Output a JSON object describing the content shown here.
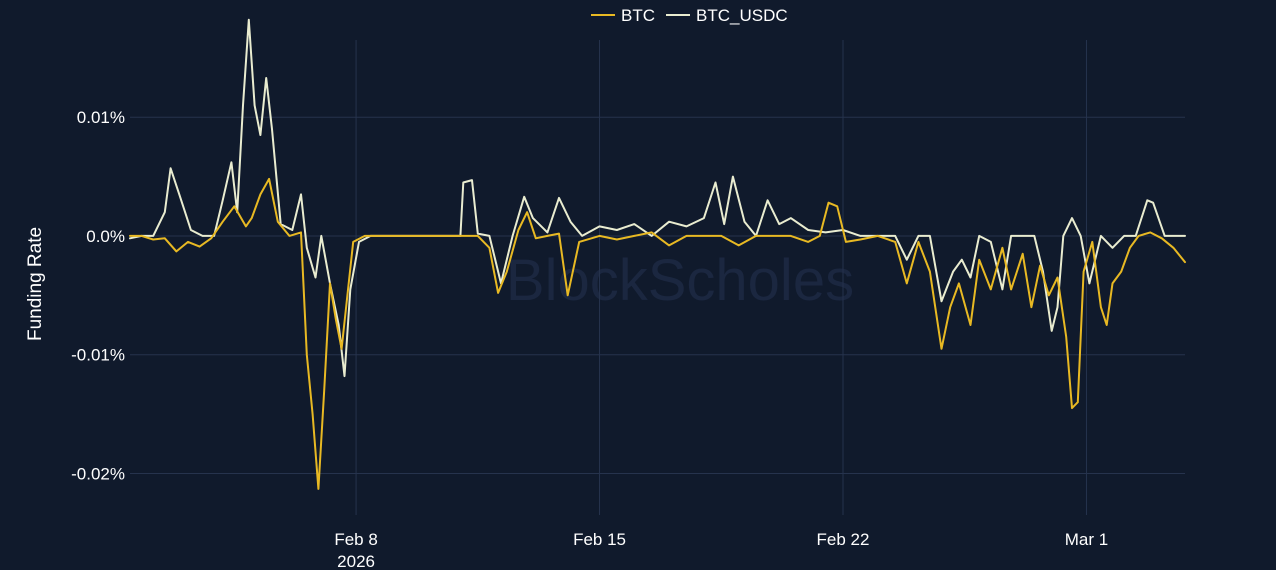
{
  "watermark": "BlockScholes",
  "chart_data": {
    "type": "line",
    "title": "",
    "xlabel": "",
    "ylabel": "Funding Rate",
    "ylim": [
      -0.0235,
      0.0165
    ],
    "xlim": [
      "2026-02-01T12:00",
      "2026-03-03T20:00"
    ],
    "y_ticks": [
      {
        "value": 0.01,
        "label": "0.01%"
      },
      {
        "value": 0.0,
        "label": "0.0%"
      },
      {
        "value": -0.01,
        "label": "-0.01%"
      },
      {
        "value": -0.02,
        "label": "-0.02%"
      }
    ],
    "x_ticks": [
      {
        "date": "2026-02-08",
        "label": "Feb 8",
        "sublabel": "2026"
      },
      {
        "date": "2026-02-15",
        "label": "Feb 15",
        "sublabel": ""
      },
      {
        "date": "2026-02-22",
        "label": "Feb 22",
        "sublabel": ""
      },
      {
        "date": "2026-03-01",
        "label": "Mar 1",
        "sublabel": ""
      }
    ],
    "grid": true,
    "legend_position": "top-center",
    "series": [
      {
        "name": "BTC",
        "color": "#e8b923",
        "points": [
          [
            "2026-02-01T12:00",
            0.0
          ],
          [
            "2026-02-01T20:00",
            0.0
          ],
          [
            "2026-02-02T04:00",
            -0.0003
          ],
          [
            "2026-02-02T12:00",
            -0.0002
          ],
          [
            "2026-02-02T20:00",
            -0.0013
          ],
          [
            "2026-02-03T04:00",
            -0.0005
          ],
          [
            "2026-02-03T12:00",
            -0.0009
          ],
          [
            "2026-02-03T20:00",
            -0.0002
          ],
          [
            "2026-02-04T04:00",
            0.0012
          ],
          [
            "2026-02-04T12:00",
            0.0025
          ],
          [
            "2026-02-04T20:00",
            0.0008
          ],
          [
            "2026-02-05T00:00",
            0.0015
          ],
          [
            "2026-02-05T06:00",
            0.0035
          ],
          [
            "2026-02-05T12:00",
            0.0048
          ],
          [
            "2026-02-05T18:00",
            0.0012
          ],
          [
            "2026-02-06T02:00",
            0.0
          ],
          [
            "2026-02-06T10:00",
            0.0003
          ],
          [
            "2026-02-06T14:00",
            -0.01
          ],
          [
            "2026-02-06T18:00",
            -0.015
          ],
          [
            "2026-02-06T22:00",
            -0.0213
          ],
          [
            "2026-02-07T02:00",
            -0.013
          ],
          [
            "2026-02-07T06:00",
            -0.004
          ],
          [
            "2026-02-07T10:00",
            -0.007
          ],
          [
            "2026-02-07T14:00",
            -0.0095
          ],
          [
            "2026-02-07T18:00",
            -0.005
          ],
          [
            "2026-02-07T22:00",
            -0.0005
          ],
          [
            "2026-02-08T06:00",
            0.0
          ],
          [
            "2026-02-09T00:00",
            0.0
          ],
          [
            "2026-02-10T00:00",
            0.0
          ],
          [
            "2026-02-11T00:00",
            0.0
          ],
          [
            "2026-02-11T12:00",
            0.0
          ],
          [
            "2026-02-11T20:00",
            -0.001
          ],
          [
            "2026-02-12T02:00",
            -0.0048
          ],
          [
            "2026-02-12T08:00",
            -0.003
          ],
          [
            "2026-02-12T16:00",
            0.0005
          ],
          [
            "2026-02-12T22:00",
            0.002
          ],
          [
            "2026-02-13T04:00",
            -0.0002
          ],
          [
            "2026-02-13T12:00",
            0.0
          ],
          [
            "2026-02-13T20:00",
            0.0002
          ],
          [
            "2026-02-14T02:00",
            -0.005
          ],
          [
            "2026-02-14T10:00",
            -0.0005
          ],
          [
            "2026-02-15T00:00",
            0.0
          ],
          [
            "2026-02-15T12:00",
            -0.0003
          ],
          [
            "2026-02-16T00:00",
            0.0
          ],
          [
            "2026-02-16T12:00",
            0.0003
          ],
          [
            "2026-02-17T00:00",
            -0.0008
          ],
          [
            "2026-02-17T12:00",
            0.0
          ],
          [
            "2026-02-18T00:00",
            0.0
          ],
          [
            "2026-02-18T12:00",
            0.0
          ],
          [
            "2026-02-19T00:00",
            -0.0008
          ],
          [
            "2026-02-19T12:00",
            0.0
          ],
          [
            "2026-02-20T00:00",
            0.0
          ],
          [
            "2026-02-20T12:00",
            0.0
          ],
          [
            "2026-02-21T00:00",
            -0.0005
          ],
          [
            "2026-02-21T08:00",
            0.0
          ],
          [
            "2026-02-21T14:00",
            0.0028
          ],
          [
            "2026-02-21T20:00",
            0.0025
          ],
          [
            "2026-02-22T02:00",
            -0.0005
          ],
          [
            "2026-02-22T12:00",
            -0.0003
          ],
          [
            "2026-02-23T00:00",
            0.0
          ],
          [
            "2026-02-23T12:00",
            -0.0005
          ],
          [
            "2026-02-23T20:00",
            -0.004
          ],
          [
            "2026-02-24T04:00",
            -0.0005
          ],
          [
            "2026-02-24T12:00",
            -0.003
          ],
          [
            "2026-02-24T20:00",
            -0.0095
          ],
          [
            "2026-02-25T02:00",
            -0.006
          ],
          [
            "2026-02-25T08:00",
            -0.004
          ],
          [
            "2026-02-25T16:00",
            -0.0075
          ],
          [
            "2026-02-25T22:00",
            -0.002
          ],
          [
            "2026-02-26T06:00",
            -0.0045
          ],
          [
            "2026-02-26T14:00",
            -0.001
          ],
          [
            "2026-02-26T20:00",
            -0.0045
          ],
          [
            "2026-02-27T04:00",
            -0.0015
          ],
          [
            "2026-02-27T10:00",
            -0.006
          ],
          [
            "2026-02-27T16:00",
            -0.0025
          ],
          [
            "2026-02-27T22:00",
            -0.005
          ],
          [
            "2026-02-28T04:00",
            -0.0035
          ],
          [
            "2026-02-28T10:00",
            -0.0085
          ],
          [
            "2026-02-28T14:00",
            -0.0145
          ],
          [
            "2026-02-28T18:00",
            -0.014
          ],
          [
            "2026-02-28T22:00",
            -0.003
          ],
          [
            "2026-03-01T04:00",
            -0.0005
          ],
          [
            "2026-03-01T10:00",
            -0.006
          ],
          [
            "2026-03-01T14:00",
            -0.0075
          ],
          [
            "2026-03-01T18:00",
            -0.004
          ],
          [
            "2026-03-02T00:00",
            -0.003
          ],
          [
            "2026-03-02T06:00",
            -0.001
          ],
          [
            "2026-03-02T12:00",
            0.0
          ],
          [
            "2026-03-02T20:00",
            0.0003
          ],
          [
            "2026-03-03T04:00",
            -0.0002
          ],
          [
            "2026-03-03T12:00",
            -0.001
          ],
          [
            "2026-03-03T20:00",
            -0.0022
          ]
        ]
      },
      {
        "name": "BTC_USDC",
        "color": "#e9ecd0",
        "points": [
          [
            "2026-02-01T12:00",
            -0.0002
          ],
          [
            "2026-02-01T20:00",
            0.0
          ],
          [
            "2026-02-02T04:00",
            0.0
          ],
          [
            "2026-02-02T12:00",
            0.002
          ],
          [
            "2026-02-02T16:00",
            0.0057
          ],
          [
            "2026-02-02T22:00",
            0.0035
          ],
          [
            "2026-02-03T06:00",
            0.0005
          ],
          [
            "2026-02-03T14:00",
            0.0
          ],
          [
            "2026-02-03T22:00",
            0.0
          ],
          [
            "2026-02-04T04:00",
            0.003
          ],
          [
            "2026-02-04T10:00",
            0.0062
          ],
          [
            "2026-02-04T14:00",
            0.002
          ],
          [
            "2026-02-04T18:00",
            0.011
          ],
          [
            "2026-02-04T22:00",
            0.0182
          ],
          [
            "2026-02-05T02:00",
            0.011
          ],
          [
            "2026-02-05T06:00",
            0.0085
          ],
          [
            "2026-02-05T10:00",
            0.0133
          ],
          [
            "2026-02-05T14:00",
            0.009
          ],
          [
            "2026-02-05T20:00",
            0.001
          ],
          [
            "2026-02-06T04:00",
            0.0005
          ],
          [
            "2026-02-06T10:00",
            0.0035
          ],
          [
            "2026-02-06T14:00",
            -0.001
          ],
          [
            "2026-02-06T20:00",
            -0.0035
          ],
          [
            "2026-02-07T00:00",
            0.0
          ],
          [
            "2026-02-07T06:00",
            -0.004
          ],
          [
            "2026-02-07T12:00",
            -0.0075
          ],
          [
            "2026-02-07T16:00",
            -0.0118
          ],
          [
            "2026-02-07T20:00",
            -0.0045
          ],
          [
            "2026-02-08T02:00",
            -0.0005
          ],
          [
            "2026-02-08T10:00",
            0.0
          ],
          [
            "2026-02-09T00:00",
            0.0
          ],
          [
            "2026-02-10T00:00",
            0.0
          ],
          [
            "2026-02-11T00:00",
            0.0
          ],
          [
            "2026-02-11T02:00",
            0.0045
          ],
          [
            "2026-02-11T08:00",
            0.0047
          ],
          [
            "2026-02-11T12:00",
            0.0002
          ],
          [
            "2026-02-11T20:00",
            0.0
          ],
          [
            "2026-02-12T04:00",
            -0.004
          ],
          [
            "2026-02-12T12:00",
            0.0
          ],
          [
            "2026-02-12T20:00",
            0.0033
          ],
          [
            "2026-02-13T02:00",
            0.0015
          ],
          [
            "2026-02-13T12:00",
            0.0003
          ],
          [
            "2026-02-13T20:00",
            0.0032
          ],
          [
            "2026-02-14T04:00",
            0.0012
          ],
          [
            "2026-02-14T12:00",
            0.0
          ],
          [
            "2026-02-15T00:00",
            0.0008
          ],
          [
            "2026-02-15T12:00",
            0.0005
          ],
          [
            "2026-02-16T00:00",
            0.001
          ],
          [
            "2026-02-16T12:00",
            0.0
          ],
          [
            "2026-02-17T00:00",
            0.0012
          ],
          [
            "2026-02-17T12:00",
            0.0008
          ],
          [
            "2026-02-18T00:00",
            0.0015
          ],
          [
            "2026-02-18T08:00",
            0.0045
          ],
          [
            "2026-02-18T14:00",
            0.001
          ],
          [
            "2026-02-18T20:00",
            0.005
          ],
          [
            "2026-02-19T04:00",
            0.0012
          ],
          [
            "2026-02-19T12:00",
            0.0
          ],
          [
            "2026-02-19T20:00",
            0.003
          ],
          [
            "2026-02-20T04:00",
            0.001
          ],
          [
            "2026-02-20T12:00",
            0.0015
          ],
          [
            "2026-02-21T00:00",
            0.0005
          ],
          [
            "2026-02-21T12:00",
            0.0003
          ],
          [
            "2026-02-22T00:00",
            0.0005
          ],
          [
            "2026-02-22T12:00",
            0.0
          ],
          [
            "2026-02-23T00:00",
            0.0
          ],
          [
            "2026-02-23T12:00",
            0.0
          ],
          [
            "2026-02-23T20:00",
            -0.002
          ],
          [
            "2026-02-24T04:00",
            0.0
          ],
          [
            "2026-02-24T12:00",
            0.0
          ],
          [
            "2026-02-24T20:00",
            -0.0055
          ],
          [
            "2026-02-25T04:00",
            -0.003
          ],
          [
            "2026-02-25T10:00",
            -0.002
          ],
          [
            "2026-02-25T16:00",
            -0.0035
          ],
          [
            "2026-02-25T22:00",
            0.0
          ],
          [
            "2026-02-26T06:00",
            -0.0005
          ],
          [
            "2026-02-26T14:00",
            -0.0045
          ],
          [
            "2026-02-26T20:00",
            0.0
          ],
          [
            "2026-02-27T06:00",
            0.0
          ],
          [
            "2026-02-27T12:00",
            0.0
          ],
          [
            "2026-02-27T18:00",
            -0.003
          ],
          [
            "2026-02-28T00:00",
            -0.008
          ],
          [
            "2026-02-28T04:00",
            -0.006
          ],
          [
            "2026-02-28T08:00",
            0.0
          ],
          [
            "2026-02-28T14:00",
            0.0015
          ],
          [
            "2026-02-28T20:00",
            0.0
          ],
          [
            "2026-03-01T02:00",
            -0.004
          ],
          [
            "2026-03-01T10:00",
            0.0
          ],
          [
            "2026-03-01T18:00",
            -0.001
          ],
          [
            "2026-03-02T02:00",
            0.0
          ],
          [
            "2026-03-02T10:00",
            0.0
          ],
          [
            "2026-03-02T18:00",
            0.003
          ],
          [
            "2026-03-02T22:00",
            0.0028
          ],
          [
            "2026-03-03T06:00",
            0.0
          ],
          [
            "2026-03-03T20:00",
            0.0
          ]
        ]
      }
    ]
  }
}
